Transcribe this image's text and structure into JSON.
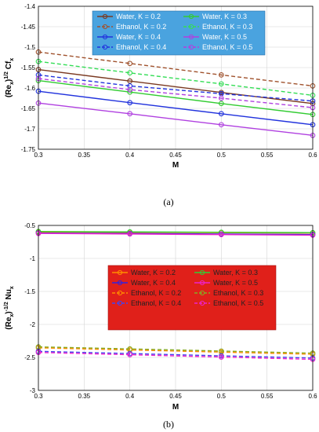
{
  "chart_data": [
    {
      "type": "line",
      "panel_label": "(a)",
      "xlabel": "M",
      "ylabel_main": "(Re",
      "ylabel_sub1": "x",
      "ylabel_sup": ")",
      "ylabel_sup_exp": "1/2",
      "ylabel_tail": " Cf",
      "ylabel_sub2": "x",
      "xlim": [
        0.3,
        0.6
      ],
      "ylim": [
        -1.75,
        -1.4
      ],
      "xticks": [
        "0.3",
        "0.35",
        "0.4",
        "0.45",
        "0.5",
        "0.55",
        "0.6"
      ],
      "yticks": [
        "-1.75",
        "-1.7",
        "-1.65",
        "-1.6",
        "-1.55",
        "-1.5",
        "-1.45",
        "-1.4"
      ],
      "grid": true,
      "legend_position": "top-right",
      "legend_bg": "#4aa3df",
      "x": [
        0.3,
        0.4,
        0.5,
        0.6
      ],
      "series": [
        {
          "name": "Water, K = 0.2",
          "color": "#7b3a22",
          "dash": false,
          "values": [
            -1.555,
            -1.583,
            -1.611,
            -1.638
          ]
        },
        {
          "name": "Water, K = 0.3",
          "color": "#33cc33",
          "dash": false,
          "values": [
            -1.582,
            -1.61,
            -1.638,
            -1.665
          ]
        },
        {
          "name": "Ethanol, K = 0.2",
          "color": "#a0522d",
          "dash": true,
          "values": [
            -1.512,
            -1.54,
            -1.568,
            -1.595
          ]
        },
        {
          "name": "Ethanol, K = 0.3",
          "color": "#33dd55",
          "dash": true,
          "values": [
            -1.535,
            -1.563,
            -1.59,
            -1.618
          ]
        },
        {
          "name": "Water, K = 0.4",
          "color": "#2233dd",
          "dash": false,
          "values": [
            -1.608,
            -1.636,
            -1.663,
            -1.69
          ]
        },
        {
          "name": "Water, K = 0.5",
          "color": "#b040e0",
          "dash": false,
          "values": [
            -1.637,
            -1.663,
            -1.69,
            -1.716
          ]
        },
        {
          "name": "Ethanol, K = 0.4",
          "color": "#2233dd",
          "dash": true,
          "values": [
            -1.568,
            -1.595,
            -1.614,
            -1.632
          ]
        },
        {
          "name": "Ethanol, K = 0.5",
          "color": "#b040e0",
          "dash": true,
          "values": [
            -1.577,
            -1.604,
            -1.625,
            -1.648
          ]
        }
      ]
    },
    {
      "type": "line",
      "panel_label": "(b)",
      "xlabel": "M",
      "ylabel_main": "(Re",
      "ylabel_sub1": "x",
      "ylabel_sup": ")",
      "ylabel_sup_exp": "-1/2",
      "ylabel_tail": " Nu",
      "ylabel_sub2": "x",
      "xlim": [
        0.3,
        0.6
      ],
      "ylim": [
        -3,
        -0.5
      ],
      "xticks": [
        "0.3",
        "0.35",
        "0.4",
        "0.45",
        "0.5",
        "0.55",
        "0.6"
      ],
      "yticks": [
        "-3",
        "-2.5",
        "-2",
        "-1.5",
        "-1",
        "-0.5"
      ],
      "grid": true,
      "legend_position": "center-right",
      "legend_bg": "#e0201a",
      "x": [
        0.3,
        0.4,
        0.5,
        0.6
      ],
      "series": [
        {
          "name": "Water, K = 0.2",
          "color": "#ff8c00",
          "dash": false,
          "values": [
            -0.6,
            -0.605,
            -0.61,
            -0.615
          ]
        },
        {
          "name": "Water, K = 0.3",
          "color": "#33cc33",
          "dash": false,
          "values": [
            -0.592,
            -0.598,
            -0.604,
            -0.61
          ]
        },
        {
          "name": "Water, K = 0.4",
          "color": "#3322dd",
          "dash": false,
          "values": [
            -0.615,
            -0.622,
            -0.63,
            -0.638
          ]
        },
        {
          "name": "Water, K = 0.5",
          "color": "#ee22cc",
          "dash": false,
          "values": [
            -0.622,
            -0.63,
            -0.639,
            -0.648
          ]
        },
        {
          "name": "Ethanol, K = 0.2",
          "color": "#ff8c00",
          "dash": true,
          "values": [
            -2.355,
            -2.388,
            -2.42,
            -2.452
          ]
        },
        {
          "name": "Ethanol, K = 0.3",
          "color": "#88aa22",
          "dash": true,
          "values": [
            -2.34,
            -2.372,
            -2.404,
            -2.436
          ]
        },
        {
          "name": "Ethanol, K = 0.4",
          "color": "#4444ee",
          "dash": true,
          "values": [
            -2.408,
            -2.442,
            -2.476,
            -2.51
          ]
        },
        {
          "name": "Ethanol, K = 0.5",
          "color": "#ee22cc",
          "dash": true,
          "values": [
            -2.425,
            -2.46,
            -2.495,
            -2.53
          ]
        }
      ]
    }
  ]
}
